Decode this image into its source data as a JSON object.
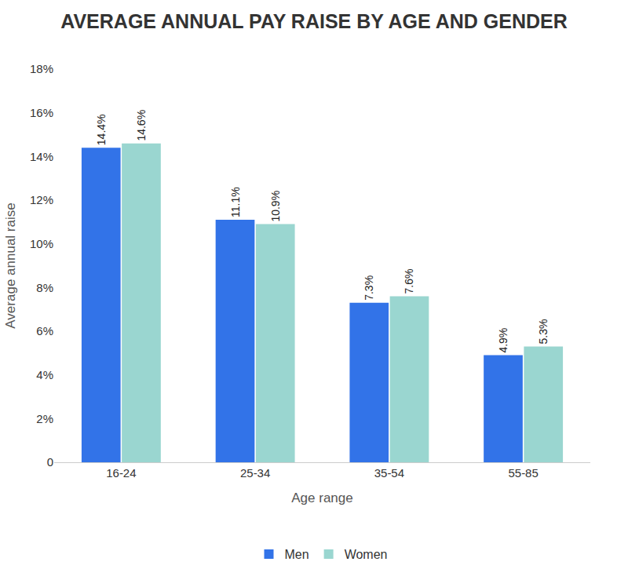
{
  "chart_data": {
    "type": "bar",
    "title": "AVERAGE ANNUAL PAY RAISE BY AGE AND GENDER",
    "x_label": "Age range",
    "y_label": "Average annual raise",
    "categories": [
      "16-24",
      "25-34",
      "35-54",
      "55-85"
    ],
    "series": [
      {
        "name": "Men",
        "color": "#3273e8",
        "values": [
          14.4,
          11.1,
          7.3,
          4.9
        ],
        "value_labels": [
          "14.4%",
          "11.1%",
          "7.3%",
          "4.9%"
        ]
      },
      {
        "name": "Women",
        "color": "#9ad6d0",
        "values": [
          14.6,
          10.9,
          7.6,
          5.3
        ],
        "value_labels": [
          "14.6%",
          "10.9%",
          "7.6%",
          "5.3%"
        ]
      }
    ],
    "ylim": [
      0,
      18
    ],
    "yticks": [
      0,
      {
        "value": 2,
        "label": "2%"
      },
      {
        "value": 4,
        "label": "4%"
      },
      {
        "value": 6,
        "label": "6%"
      },
      {
        "value": 8,
        "label": "8%"
      },
      {
        "value": 10,
        "label": "10%"
      },
      {
        "value": 12,
        "label": "12%"
      },
      {
        "value": 14,
        "label": "14%"
      },
      {
        "value": 16,
        "label": "16%"
      },
      {
        "value": 18,
        "label": "18%"
      }
    ],
    "grid": false,
    "data_labels": true,
    "legend": "bottom"
  }
}
